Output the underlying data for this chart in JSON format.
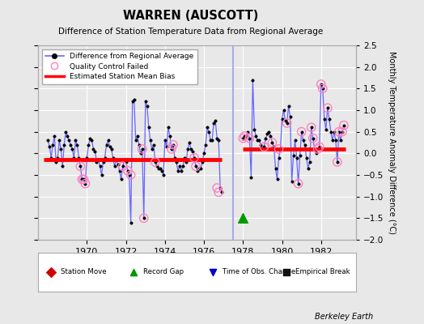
{
  "title": "WARREN (AUSCOTT)",
  "subtitle": "Difference of Station Temperature Data from Regional Average",
  "ylabel": "Monthly Temperature Anomaly Difference (°C)",
  "credit": "Berkeley Earth",
  "ylim": [
    -2.0,
    2.5
  ],
  "yticks": [
    -2.0,
    -1.5,
    -1.0,
    -0.5,
    0.0,
    0.5,
    1.0,
    1.5,
    2.0,
    2.5
  ],
  "xlim": [
    1967.5,
    1983.8
  ],
  "xticks": [
    1970,
    1972,
    1974,
    1976,
    1978,
    1980,
    1982
  ],
  "bg_color": "#e8e8e8",
  "plot_bg_color": "#e8e8e8",
  "grid_color": "#ffffff",
  "line_color": "#6666ff",
  "bias_color": "#ff0000",
  "gap_line_color": "#aaaaee",
  "time_series_1": {
    "x": [
      1968.0,
      1968.083,
      1968.167,
      1968.25,
      1968.333,
      1968.417,
      1968.5,
      1968.583,
      1968.667,
      1968.75,
      1968.833,
      1968.917,
      1969.0,
      1969.083,
      1969.167,
      1969.25,
      1969.333,
      1969.417,
      1969.5,
      1969.583,
      1969.667,
      1969.75,
      1969.833,
      1969.917,
      1970.0,
      1970.083,
      1970.167,
      1970.25,
      1970.333,
      1970.417,
      1970.5,
      1970.583,
      1970.667,
      1970.75,
      1970.833,
      1970.917,
      1971.0,
      1971.083,
      1971.167,
      1971.25,
      1971.333,
      1971.417,
      1971.5,
      1971.583,
      1971.667,
      1971.75,
      1971.833,
      1971.917,
      1972.0,
      1972.083,
      1972.167,
      1972.25,
      1972.333,
      1972.417,
      1972.5,
      1972.583,
      1972.667,
      1972.75,
      1972.833,
      1972.917,
      1973.0,
      1973.083,
      1973.167,
      1973.25,
      1973.333,
      1973.417,
      1973.5,
      1973.583,
      1973.667,
      1973.75,
      1973.833,
      1973.917,
      1974.0,
      1974.083,
      1974.167,
      1974.25,
      1974.333,
      1974.417,
      1974.5,
      1974.583,
      1974.667,
      1974.75,
      1974.833,
      1974.917,
      1975.0,
      1975.083,
      1975.167,
      1975.25,
      1975.333,
      1975.417,
      1975.5,
      1975.583,
      1975.667,
      1975.75,
      1975.833,
      1975.917,
      1976.0,
      1976.083,
      1976.167,
      1976.25,
      1976.333,
      1976.417,
      1976.5,
      1976.583,
      1976.667,
      1976.75,
      1976.833,
      1976.917
    ],
    "y": [
      0.3,
      0.15,
      -0.1,
      0.2,
      0.4,
      -0.2,
      -0.1,
      0.3,
      0.1,
      -0.3,
      0.2,
      0.5,
      0.4,
      0.3,
      0.2,
      0.1,
      -0.1,
      0.3,
      0.2,
      -0.1,
      -0.3,
      -0.6,
      -0.6,
      -0.7,
      -0.1,
      0.2,
      0.35,
      0.3,
      0.1,
      0.05,
      -0.2,
      -0.15,
      -0.3,
      -0.5,
      -0.2,
      -0.1,
      0.2,
      0.3,
      0.15,
      0.1,
      -0.1,
      -0.3,
      -0.15,
      -0.25,
      -0.4,
      -0.6,
      -0.3,
      -0.15,
      -0.2,
      -0.4,
      -0.5,
      -1.6,
      1.2,
      1.25,
      0.3,
      0.4,
      0.2,
      0.0,
      0.1,
      -1.5,
      1.2,
      1.1,
      0.6,
      0.3,
      0.1,
      0.2,
      -0.2,
      -0.3,
      -0.35,
      -0.35,
      -0.4,
      -0.5,
      0.3,
      0.15,
      0.6,
      0.4,
      0.1,
      0.2,
      -0.1,
      -0.2,
      -0.4,
      -0.3,
      -0.4,
      -0.3,
      -0.1,
      -0.2,
      0.1,
      0.25,
      0.1,
      0.05,
      -0.1,
      -0.3,
      -0.4,
      -0.35,
      -0.35,
      -0.2,
      0.0,
      0.2,
      0.6,
      0.5,
      0.3,
      0.3,
      0.7,
      0.75,
      0.35,
      0.3,
      -0.8,
      -0.9
    ]
  },
  "time_series_2": {
    "x": [
      1978.0,
      1978.083,
      1978.167,
      1978.25,
      1978.333,
      1978.417,
      1978.5,
      1978.583,
      1978.667,
      1978.75,
      1978.833,
      1978.917,
      1979.0,
      1979.083,
      1979.167,
      1979.25,
      1979.333,
      1979.417,
      1979.5,
      1979.583,
      1979.667,
      1979.75,
      1979.833,
      1979.917,
      1980.0,
      1980.083,
      1980.167,
      1980.25,
      1980.333,
      1980.417,
      1980.5,
      1980.583,
      1980.667,
      1980.75,
      1980.833,
      1980.917,
      1981.0,
      1981.083,
      1981.167,
      1981.25,
      1981.333,
      1981.417,
      1981.5,
      1981.583,
      1981.667,
      1981.75,
      1981.833,
      1981.917,
      1982.0,
      1982.083,
      1982.167,
      1982.25,
      1982.333,
      1982.417,
      1982.5,
      1982.583,
      1982.667,
      1982.75,
      1982.833,
      1982.917,
      1983.0,
      1983.083,
      1983.167
    ],
    "y": [
      0.35,
      0.4,
      0.4,
      0.5,
      0.35,
      -0.55,
      1.7,
      0.55,
      0.4,
      0.3,
      0.3,
      0.2,
      0.1,
      0.15,
      0.35,
      0.45,
      0.5,
      0.4,
      0.25,
      0.15,
      -0.35,
      -0.6,
      -0.1,
      0.1,
      0.8,
      1.0,
      0.75,
      0.7,
      1.1,
      0.85,
      -0.65,
      -0.05,
      0.3,
      -0.1,
      -0.7,
      -0.05,
      0.5,
      0.3,
      0.2,
      -0.1,
      -0.35,
      -0.2,
      0.6,
      0.35,
      0.1,
      0.0,
      0.1,
      0.15,
      1.6,
      1.5,
      0.8,
      0.55,
      1.05,
      0.8,
      0.5,
      0.3,
      0.5,
      0.3,
      -0.2,
      0.5,
      0.3,
      0.5,
      0.65
    ]
  },
  "qc_failed_1_x": [
    1969.667,
    1969.75,
    1969.833,
    1969.917,
    1971.833,
    1972.083,
    1972.25,
    1972.833,
    1972.917,
    1973.5,
    1974.333,
    1974.417,
    1975.5,
    1975.583,
    1976.667,
    1976.75
  ],
  "qc_failed_1_y": [
    -0.3,
    -0.6,
    -0.6,
    -0.7,
    -0.3,
    -0.4,
    -0.5,
    0.1,
    -1.5,
    -0.2,
    0.1,
    0.2,
    -0.1,
    -0.3,
    -0.8,
    -0.9
  ],
  "qc_failed_2_x": [
    1978.0,
    1978.083,
    1978.333,
    1979.083,
    1979.5,
    1979.833,
    1980.25,
    1980.833,
    1981.0,
    1981.5,
    1981.583,
    1981.833,
    1981.917,
    1982.0,
    1982.083,
    1982.333,
    1982.833,
    1982.917,
    1983.083,
    1983.167
  ],
  "qc_failed_2_y": [
    0.35,
    0.4,
    0.35,
    0.15,
    0.25,
    0.1,
    0.7,
    -0.7,
    0.5,
    0.6,
    0.35,
    0.1,
    0.15,
    1.6,
    1.5,
    1.05,
    -0.2,
    0.5,
    0.5,
    0.65
  ],
  "bias_segments": [
    {
      "x": [
        1967.8,
        1976.92
      ],
      "y": [
        -0.15,
        -0.15
      ]
    },
    {
      "x": [
        1978.0,
        1983.25
      ],
      "y": [
        0.1,
        0.1
      ]
    }
  ],
  "record_gap_x": 1978.0,
  "record_gap_y": -1.5,
  "vertical_line_x": 1977.5,
  "legend_bottom": [
    {
      "label": "Station Move",
      "color": "#cc0000",
      "marker": "D"
    },
    {
      "label": "Record Gap",
      "color": "#009900",
      "marker": "^"
    },
    {
      "label": "Time of Obs. Change",
      "color": "#0000cc",
      "marker": "v"
    },
    {
      "label": "Empirical Break",
      "color": "#111111",
      "marker": "s"
    }
  ]
}
